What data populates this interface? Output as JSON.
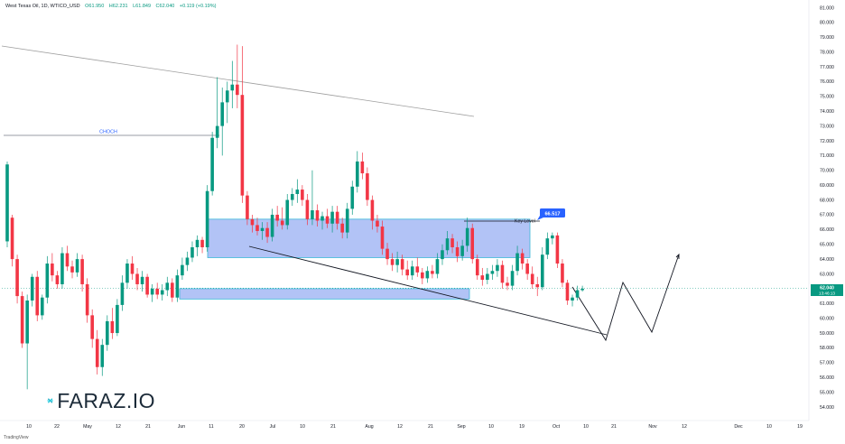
{
  "header": {
    "symbol": "West Texas Oil, 1D, WTICO_USD",
    "open": "O61.950",
    "high": "H62.231",
    "low": "L61.849",
    "close": "C62.040",
    "change": "+0.119 (+0.19%)"
  },
  "watermark": {
    "brand": "FARAZ.IO"
  },
  "footer": {
    "text": "TradingView"
  },
  "colors": {
    "up": "#089981",
    "down": "#f23645",
    "zone_fill": "#a4b8f5",
    "zone_border": "#3ab7d8",
    "key_label": "#2962ff",
    "price_label": "#089981"
  },
  "chart_data": {
    "type": "candlestick",
    "y_axis": {
      "range": [
        54,
        81
      ],
      "tick_labels": [
        "81.000",
        "80.000",
        "79.000",
        "78.000",
        "77.000",
        "76.000",
        "75.000",
        "74.000",
        "73.000",
        "72.000",
        "71.000",
        "70.000",
        "69.000",
        "68.000",
        "67.000",
        "66.000",
        "65.000",
        "64.000",
        "63.000",
        "62.000",
        "61.000",
        "60.000",
        "59.000",
        "58.000",
        "57.000",
        "56.000",
        "55.000",
        "54.000"
      ]
    },
    "x_axis": {
      "tick_labels": [
        "10",
        "22",
        "May",
        "12",
        "21",
        "Jun",
        "11",
        "20",
        "Jul",
        "10",
        "21",
        "Aug",
        "12",
        "21",
        "Sep",
        "10",
        "19",
        "Oct",
        "10",
        "21",
        "Nov",
        "12",
        "Dec",
        "10",
        "19"
      ]
    },
    "annotations": {
      "choch_label": "CHOCH",
      "key_level_label": "Key Level",
      "key_level_value": "66.517",
      "current_price": "62.040",
      "countdown": "13:46:13"
    },
    "zones": [
      {
        "name": "upper-zone",
        "top": 66.7,
        "bottom": 64.1
      },
      {
        "name": "lower-zone",
        "top": 62.0,
        "bottom": 61.3
      }
    ],
    "candles": [
      {
        "o": 65.2,
        "h": 70.6,
        "l": 64.8,
        "c": 70.4
      },
      {
        "o": 66.8,
        "h": 67.0,
        "l": 63.5,
        "c": 64.0
      },
      {
        "o": 64.0,
        "h": 64.3,
        "l": 61.0,
        "c": 61.5
      },
      {
        "o": 61.5,
        "h": 61.8,
        "l": 58.0,
        "c": 58.3
      },
      {
        "o": 58.3,
        "h": 61.6,
        "l": 55.2,
        "c": 61.2
      },
      {
        "o": 61.2,
        "h": 63.0,
        "l": 60.8,
        "c": 62.8
      },
      {
        "o": 62.8,
        "h": 63.2,
        "l": 59.8,
        "c": 60.2
      },
      {
        "o": 60.2,
        "h": 61.6,
        "l": 59.9,
        "c": 61.4
      },
      {
        "o": 61.4,
        "h": 64.2,
        "l": 61.0,
        "c": 63.7
      },
      {
        "o": 63.7,
        "h": 64.4,
        "l": 62.5,
        "c": 62.9
      },
      {
        "o": 62.9,
        "h": 63.2,
        "l": 62.0,
        "c": 62.3
      },
      {
        "o": 62.3,
        "h": 64.8,
        "l": 62.0,
        "c": 64.4
      },
      {
        "o": 64.4,
        "h": 64.9,
        "l": 63.2,
        "c": 63.5
      },
      {
        "o": 63.5,
        "h": 63.9,
        "l": 62.7,
        "c": 63.1
      },
      {
        "o": 63.1,
        "h": 64.4,
        "l": 62.8,
        "c": 64.0
      },
      {
        "o": 64.0,
        "h": 64.3,
        "l": 61.8,
        "c": 62.3
      },
      {
        "o": 62.3,
        "h": 62.7,
        "l": 59.7,
        "c": 60.2
      },
      {
        "o": 60.2,
        "h": 60.6,
        "l": 58.0,
        "c": 58.6
      },
      {
        "o": 58.6,
        "h": 59.2,
        "l": 56.2,
        "c": 56.7
      },
      {
        "o": 56.7,
        "h": 58.6,
        "l": 56.1,
        "c": 58.2
      },
      {
        "o": 58.2,
        "h": 60.2,
        "l": 57.8,
        "c": 59.8
      },
      {
        "o": 59.8,
        "h": 60.7,
        "l": 58.6,
        "c": 59.0
      },
      {
        "o": 59.0,
        "h": 61.3,
        "l": 58.8,
        "c": 60.9
      },
      {
        "o": 60.9,
        "h": 62.9,
        "l": 60.5,
        "c": 62.4
      },
      {
        "o": 62.4,
        "h": 64.0,
        "l": 62.0,
        "c": 63.7
      },
      {
        "o": 63.7,
        "h": 64.2,
        "l": 62.6,
        "c": 63.0
      },
      {
        "o": 63.0,
        "h": 63.4,
        "l": 61.9,
        "c": 62.3
      },
      {
        "o": 62.3,
        "h": 63.2,
        "l": 61.8,
        "c": 62.8
      },
      {
        "o": 62.8,
        "h": 63.0,
        "l": 61.4,
        "c": 61.6
      },
      {
        "o": 61.6,
        "h": 62.3,
        "l": 61.1,
        "c": 62.0
      },
      {
        "o": 62.0,
        "h": 62.4,
        "l": 61.3,
        "c": 61.6
      },
      {
        "o": 61.6,
        "h": 62.3,
        "l": 61.2,
        "c": 61.9
      },
      {
        "o": 61.9,
        "h": 62.8,
        "l": 61.5,
        "c": 62.4
      },
      {
        "o": 62.4,
        "h": 62.7,
        "l": 61.1,
        "c": 61.4
      },
      {
        "o": 61.4,
        "h": 63.3,
        "l": 61.1,
        "c": 62.9
      },
      {
        "o": 62.9,
        "h": 64.1,
        "l": 62.6,
        "c": 63.6
      },
      {
        "o": 63.6,
        "h": 64.5,
        "l": 63.2,
        "c": 64.1
      },
      {
        "o": 64.1,
        "h": 65.2,
        "l": 63.8,
        "c": 64.8
      },
      {
        "o": 64.8,
        "h": 65.6,
        "l": 64.2,
        "c": 65.3
      },
      {
        "o": 65.3,
        "h": 65.5,
        "l": 64.4,
        "c": 64.8
      },
      {
        "o": 64.8,
        "h": 69.0,
        "l": 64.5,
        "c": 68.6
      },
      {
        "o": 68.6,
        "h": 72.6,
        "l": 68.3,
        "c": 72.2
      },
      {
        "o": 72.2,
        "h": 76.3,
        "l": 71.5,
        "c": 73.0
      },
      {
        "o": 73.0,
        "h": 75.6,
        "l": 71.0,
        "c": 74.6
      },
      {
        "o": 74.6,
        "h": 76.0,
        "l": 73.2,
        "c": 75.4
      },
      {
        "o": 75.4,
        "h": 77.4,
        "l": 74.2,
        "c": 75.8
      },
      {
        "o": 75.8,
        "h": 78.5,
        "l": 74.2,
        "c": 75.1
      },
      {
        "o": 75.1,
        "h": 78.4,
        "l": 67.8,
        "c": 68.3
      },
      {
        "o": 68.3,
        "h": 68.6,
        "l": 66.3,
        "c": 66.7
      },
      {
        "o": 66.7,
        "h": 67.0,
        "l": 65.8,
        "c": 66.3
      },
      {
        "o": 66.3,
        "h": 66.8,
        "l": 65.6,
        "c": 65.9
      },
      {
        "o": 65.9,
        "h": 66.5,
        "l": 65.3,
        "c": 66.1
      },
      {
        "o": 66.1,
        "h": 66.5,
        "l": 65.1,
        "c": 65.5
      },
      {
        "o": 65.5,
        "h": 67.4,
        "l": 65.2,
        "c": 67.0
      },
      {
        "o": 67.0,
        "h": 67.6,
        "l": 66.2,
        "c": 66.6
      },
      {
        "o": 66.6,
        "h": 67.5,
        "l": 66.0,
        "c": 66.3
      },
      {
        "o": 66.3,
        "h": 68.4,
        "l": 66.0,
        "c": 68.0
      },
      {
        "o": 68.0,
        "h": 68.8,
        "l": 67.6,
        "c": 68.4
      },
      {
        "o": 68.4,
        "h": 69.4,
        "l": 67.8,
        "c": 68.7
      },
      {
        "o": 68.7,
        "h": 69.0,
        "l": 67.6,
        "c": 68.0
      },
      {
        "o": 68.0,
        "h": 68.4,
        "l": 66.3,
        "c": 66.7
      },
      {
        "o": 66.7,
        "h": 70.0,
        "l": 66.3,
        "c": 67.3
      },
      {
        "o": 67.3,
        "h": 67.7,
        "l": 66.2,
        "c": 66.6
      },
      {
        "o": 66.6,
        "h": 67.2,
        "l": 66.0,
        "c": 66.9
      },
      {
        "o": 66.9,
        "h": 67.4,
        "l": 66.1,
        "c": 66.4
      },
      {
        "o": 66.4,
        "h": 67.6,
        "l": 65.8,
        "c": 67.2
      },
      {
        "o": 67.2,
        "h": 67.6,
        "l": 66.0,
        "c": 66.4
      },
      {
        "o": 66.4,
        "h": 66.8,
        "l": 65.4,
        "c": 65.8
      },
      {
        "o": 65.8,
        "h": 67.8,
        "l": 65.4,
        "c": 67.4
      },
      {
        "o": 67.4,
        "h": 69.3,
        "l": 67.0,
        "c": 68.9
      },
      {
        "o": 68.9,
        "h": 71.3,
        "l": 68.5,
        "c": 70.6
      },
      {
        "o": 70.6,
        "h": 71.2,
        "l": 69.4,
        "c": 69.8
      },
      {
        "o": 69.8,
        "h": 70.2,
        "l": 67.6,
        "c": 68.0
      },
      {
        "o": 68.0,
        "h": 68.3,
        "l": 66.0,
        "c": 66.6
      },
      {
        "o": 66.6,
        "h": 67.0,
        "l": 65.8,
        "c": 66.2
      },
      {
        "o": 66.2,
        "h": 66.6,
        "l": 64.3,
        "c": 64.7
      },
      {
        "o": 64.7,
        "h": 65.1,
        "l": 63.6,
        "c": 64.0
      },
      {
        "o": 64.0,
        "h": 64.4,
        "l": 63.2,
        "c": 63.6
      },
      {
        "o": 63.6,
        "h": 64.5,
        "l": 63.1,
        "c": 64.0
      },
      {
        "o": 64.0,
        "h": 64.3,
        "l": 62.9,
        "c": 63.3
      },
      {
        "o": 63.3,
        "h": 63.9,
        "l": 62.6,
        "c": 62.9
      },
      {
        "o": 62.9,
        "h": 63.9,
        "l": 62.6,
        "c": 63.5
      },
      {
        "o": 63.5,
        "h": 64.1,
        "l": 62.8,
        "c": 63.1
      },
      {
        "o": 63.1,
        "h": 63.4,
        "l": 62.3,
        "c": 62.7
      },
      {
        "o": 62.7,
        "h": 63.5,
        "l": 62.4,
        "c": 63.2
      },
      {
        "o": 63.2,
        "h": 63.6,
        "l": 62.7,
        "c": 63.0
      },
      {
        "o": 63.0,
        "h": 64.4,
        "l": 62.7,
        "c": 64.0
      },
      {
        "o": 64.0,
        "h": 65.0,
        "l": 63.6,
        "c": 64.6
      },
      {
        "o": 64.6,
        "h": 65.9,
        "l": 64.3,
        "c": 65.4
      },
      {
        "o": 65.4,
        "h": 65.7,
        "l": 64.4,
        "c": 64.8
      },
      {
        "o": 64.8,
        "h": 65.2,
        "l": 63.8,
        "c": 64.2
      },
      {
        "o": 64.2,
        "h": 65.3,
        "l": 63.9,
        "c": 64.9
      },
      {
        "o": 64.9,
        "h": 66.8,
        "l": 64.5,
        "c": 66.1
      },
      {
        "o": 66.1,
        "h": 66.4,
        "l": 63.7,
        "c": 64.0
      },
      {
        "o": 64.0,
        "h": 64.3,
        "l": 62.6,
        "c": 62.9
      },
      {
        "o": 62.9,
        "h": 63.4,
        "l": 62.2,
        "c": 62.6
      },
      {
        "o": 62.6,
        "h": 63.4,
        "l": 62.3,
        "c": 63.0
      },
      {
        "o": 63.0,
        "h": 63.6,
        "l": 62.6,
        "c": 63.2
      },
      {
        "o": 63.2,
        "h": 64.0,
        "l": 62.8,
        "c": 63.6
      },
      {
        "o": 63.6,
        "h": 63.9,
        "l": 62.0,
        "c": 62.4
      },
      {
        "o": 62.4,
        "h": 62.8,
        "l": 61.9,
        "c": 62.2
      },
      {
        "o": 62.2,
        "h": 63.6,
        "l": 61.9,
        "c": 63.2
      },
      {
        "o": 63.2,
        "h": 64.9,
        "l": 62.9,
        "c": 64.4
      },
      {
        "o": 64.4,
        "h": 64.7,
        "l": 63.3,
        "c": 63.7
      },
      {
        "o": 63.7,
        "h": 64.0,
        "l": 62.6,
        "c": 63.0
      },
      {
        "o": 63.0,
        "h": 63.5,
        "l": 62.0,
        "c": 62.3
      },
      {
        "o": 62.3,
        "h": 62.8,
        "l": 61.5,
        "c": 62.1
      },
      {
        "o": 62.1,
        "h": 64.8,
        "l": 61.9,
        "c": 64.3
      },
      {
        "o": 64.3,
        "h": 65.8,
        "l": 64.0,
        "c": 65.4
      },
      {
        "o": 65.4,
        "h": 65.8,
        "l": 65.0,
        "c": 65.6
      },
      {
        "o": 65.6,
        "h": 65.8,
        "l": 63.4,
        "c": 63.7
      },
      {
        "o": 63.7,
        "h": 64.0,
        "l": 62.1,
        "c": 62.4
      },
      {
        "o": 62.4,
        "h": 62.6,
        "l": 60.9,
        "c": 61.2
      },
      {
        "o": 61.2,
        "h": 61.6,
        "l": 60.8,
        "c": 61.4
      },
      {
        "o": 61.4,
        "h": 62.2,
        "l": 61.2,
        "c": 61.9
      },
      {
        "o": 61.9,
        "h": 62.2,
        "l": 61.8,
        "c": 62.0
      }
    ]
  }
}
